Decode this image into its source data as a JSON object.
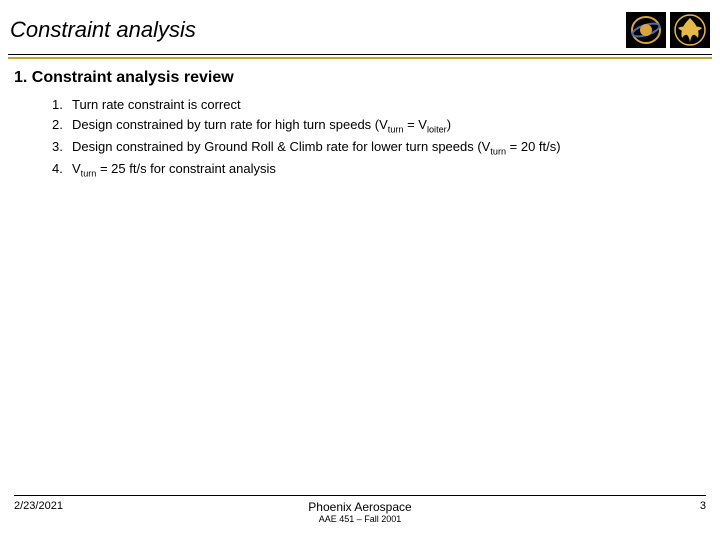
{
  "header": {
    "title": "Constraint analysis",
    "logo1_colors": {
      "bg": "#000000",
      "ring": "#d9a23a",
      "band": "#4a6aa8"
    },
    "logo2_colors": {
      "bg": "#000000",
      "bird": "#e6b84a"
    }
  },
  "rule_color": "#c9a227",
  "section": {
    "number": "1.",
    "heading": "Constraint analysis review",
    "items": [
      {
        "num": "1.",
        "text_html": "Turn rate constraint is correct"
      },
      {
        "num": "2.",
        "text_html": "Design constrained by turn rate for high turn speeds (V<sub>turn</sub> = V<sub>loiter</sub>)"
      },
      {
        "num": "3.",
        "text_html": "Design constrained by Ground Roll & Climb rate for lower turn speeds (V<sub>turn</sub> = 20 ft/s)"
      },
      {
        "num": "4.",
        "text_html": "V<sub>turn</sub> = 25 ft/s for constraint analysis"
      }
    ]
  },
  "footer": {
    "date": "2/23/2021",
    "center_title": "Phoenix Aerospace",
    "center_sub": "AAE 451 – Fall 2001",
    "page": "3"
  }
}
